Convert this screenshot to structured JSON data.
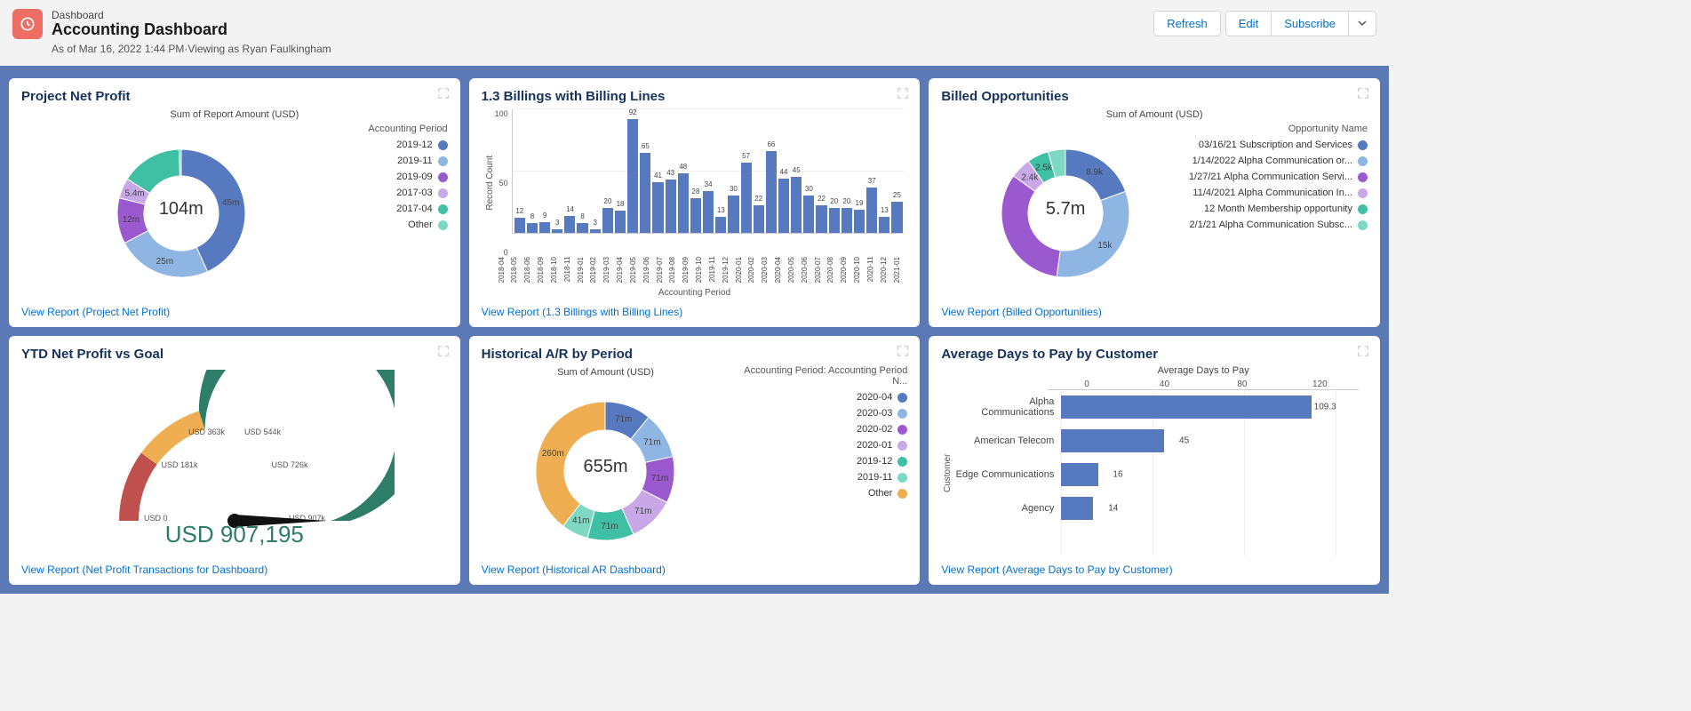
{
  "header": {
    "eyebrow": "Dashboard",
    "title": "Accounting Dashboard",
    "meta": "As of Mar 16, 2022 1:44 PM·Viewing as Ryan Faulkingham",
    "actions": {
      "refresh": "Refresh",
      "edit": "Edit",
      "subscribe": "Subscribe"
    },
    "icon_bg": "#ef6e64"
  },
  "palette": {
    "blue": "#5679c0",
    "lightblue": "#8fb6e3",
    "paleblue": "#bcd2ee",
    "purple": "#9b59d0",
    "lavender": "#c9a8e7",
    "teal": "#3fbfa3",
    "mint": "#7dd9c4",
    "orange": "#f0ażółty",
    "orange2": "#efae52",
    "link": "#0070d2",
    "card_title": "#16325c"
  },
  "cards": {
    "project_net_profit": {
      "title": "Project Net Profit",
      "subtitle": "Sum of Report Amount (USD)",
      "center": "104m",
      "link": "View Report (Project Net Profit)",
      "legend_title": "Accounting Period",
      "segments": [
        {
          "label": "2019-12",
          "value": 45,
          "txt": "45m",
          "color": "#5679c0"
        },
        {
          "label": "2019-11",
          "value": 25,
          "txt": "25m",
          "color": "#8fb6e3"
        },
        {
          "label": "2019-09",
          "value": 12,
          "txt": "12m",
          "color": "#9b59d0"
        },
        {
          "label": "2017-03",
          "value": 5.4,
          "txt": "5.4m",
          "color": "#c9a8e7"
        },
        {
          "label": "2017-04",
          "value": 16,
          "txt": "",
          "color": "#3fbfa3"
        },
        {
          "label": "Other",
          "value": 0.6,
          "txt": "",
          "color": "#7dd9c4"
        }
      ]
    },
    "billings": {
      "title": "1.3 Billings with Billing Lines",
      "y_label": "Record Count",
      "x_label": "Accounting Period",
      "link": "View Report (1.3 Billings with Billing Lines)",
      "ymax": 100,
      "yticks": [
        100,
        50,
        0
      ],
      "bars": [
        {
          "x": "2018-04",
          "v": 12
        },
        {
          "x": "2018-05",
          "v": 8
        },
        {
          "x": "2018-06",
          "v": 9
        },
        {
          "x": "2018-09",
          "v": 3
        },
        {
          "x": "2018-10",
          "v": 14
        },
        {
          "x": "2018-11",
          "v": 8
        },
        {
          "x": "2019-01",
          "v": 3
        },
        {
          "x": "2019-02",
          "v": 20
        },
        {
          "x": "2019-03",
          "v": 18
        },
        {
          "x": "2019-04",
          "v": 92
        },
        {
          "x": "2019-05",
          "v": 65
        },
        {
          "x": "2019-06",
          "v": 41
        },
        {
          "x": "2019-07",
          "v": 43
        },
        {
          "x": "2019-08",
          "v": 48
        },
        {
          "x": "2019-09",
          "v": 28
        },
        {
          "x": "2019-10",
          "v": 34
        },
        {
          "x": "2019-11",
          "v": 13
        },
        {
          "x": "2019-12",
          "v": 30
        },
        {
          "x": "2020-01",
          "v": 57
        },
        {
          "x": "2020-02",
          "v": 22
        },
        {
          "x": "2020-03",
          "v": 66
        },
        {
          "x": "2020-04",
          "v": 44
        },
        {
          "x": "2020-05",
          "v": 45
        },
        {
          "x": "2020-06",
          "v": 30
        },
        {
          "x": "2020-07",
          "v": 22
        },
        {
          "x": "2020-08",
          "v": 20
        },
        {
          "x": "2020-09",
          "v": 20
        },
        {
          "x": "2020-10",
          "v": 19
        },
        {
          "x": "2020-11",
          "v": 37
        },
        {
          "x": "2020-12",
          "v": 13
        },
        {
          "x": "2021-01",
          "v": 25
        }
      ],
      "bar_color": "#5679c0"
    },
    "billed_opps": {
      "title": "Billed Opportunities",
      "subtitle": "Sum of Amount (USD)",
      "center": "5.7m",
      "link": "View Report (Billed Opportunities)",
      "legend_title": "Opportunity Name",
      "segments": [
        {
          "label": "03/16/21 Subscription and Services",
          "value": 8.9,
          "txt": "8.9k",
          "color": "#5679c0"
        },
        {
          "label": "1/14/2022 Alpha Communication or...",
          "value": 15,
          "txt": "15k",
          "color": "#8fb6e3"
        },
        {
          "label": "1/27/21 Alpha Communication Servi...",
          "value": 15,
          "txt": "",
          "color": "#9b59d0"
        },
        {
          "label": "11/4/2021 Alpha Communication In...",
          "value": 2.4,
          "txt": "2.4k",
          "color": "#c9a8e7"
        },
        {
          "label": "12 Month Membership opportunity",
          "value": 2.5,
          "txt": "2.5k",
          "color": "#3fbfa3"
        },
        {
          "label": "2/1/21 Alpha Communication Subsc...",
          "value": 2,
          "txt": "",
          "color": "#7dd9c4"
        }
      ]
    },
    "ytd": {
      "title": "YTD Net Profit vs Goal",
      "value_text": "USD 907,195",
      "link": "View Report (Net Profit Transactions for Dashboard)",
      "ticks": [
        {
          "label": "USD 0",
          "pos": 0
        },
        {
          "label": "USD 181k",
          "pos": 0.2
        },
        {
          "label": "USD 363k",
          "pos": 0.4
        },
        {
          "label": "USD 544k",
          "pos": 0.6
        },
        {
          "label": "USD 726k",
          "pos": 0.8
        },
        {
          "label": "USD 907k",
          "pos": 1.0
        }
      ],
      "arcs": [
        {
          "from": 0,
          "to": 0.2,
          "color": "#c0504d"
        },
        {
          "from": 0.2,
          "to": 0.4,
          "color": "#efae52"
        },
        {
          "from": 0.4,
          "to": 1.0,
          "color": "#2e7d68"
        }
      ],
      "needle": 1.0,
      "value_color": "#2e7d68"
    },
    "historical_ar": {
      "title": "Historical A/R by Period",
      "subtitle": "Sum of Amount (USD)",
      "center": "655m",
      "link": "View Report (Historical AR Dashboard)",
      "legend_title": "Accounting Period: Accounting Period N...",
      "segments": [
        {
          "label": "2020-04",
          "value": 71,
          "txt": "71m",
          "color": "#5679c0"
        },
        {
          "label": "2020-03",
          "value": 71,
          "txt": "71m",
          "color": "#8fb6e3"
        },
        {
          "label": "2020-02",
          "value": 71,
          "txt": "71m",
          "color": "#9b59d0"
        },
        {
          "label": "2020-01",
          "value": 71,
          "txt": "71m",
          "color": "#c9a8e7"
        },
        {
          "label": "2019-12",
          "value": 71,
          "txt": "71m",
          "color": "#3fbfa3"
        },
        {
          "label": "2019-11",
          "value": 41,
          "txt": "41m",
          "color": "#7dd9c4"
        },
        {
          "label": "Other",
          "value": 260,
          "txt": "260m",
          "color": "#efae52"
        }
      ]
    },
    "avg_days": {
      "title": "Average Days to Pay by Customer",
      "x_title": "Average Days to Pay",
      "y_label": "Customer",
      "link": "View Report (Average Days to Pay by Customer)",
      "xmax": 130,
      "xticks": [
        0,
        40,
        80,
        120,
        160
      ],
      "xticks2": [
        0,
        40,
        80,
        120
      ],
      "ticks": [
        0,
        40,
        80,
        120
      ],
      "tickLabels": [
        "0",
        "40",
        "80",
        "120"
      ],
      "tickLabelsFull": [
        "0",
        "40",
        "80",
        "120",
        "160"
      ],
      "ticksShown": [
        0,
        40,
        80,
        120
      ],
      "ticksLabels": [
        "0",
        "40",
        "80",
        "120"
      ],
      "xticksActual": [
        0,
        40,
        80,
        120
      ],
      "bars": [
        {
          "label": "Alpha Communications",
          "v": 109.3
        },
        {
          "label": "American Telecom",
          "v": 45
        },
        {
          "label": "Edge Communications",
          "v": 16
        },
        {
          "label": "Agency",
          "v": 14
        }
      ],
      "bar_color": "#5679c0"
    }
  }
}
